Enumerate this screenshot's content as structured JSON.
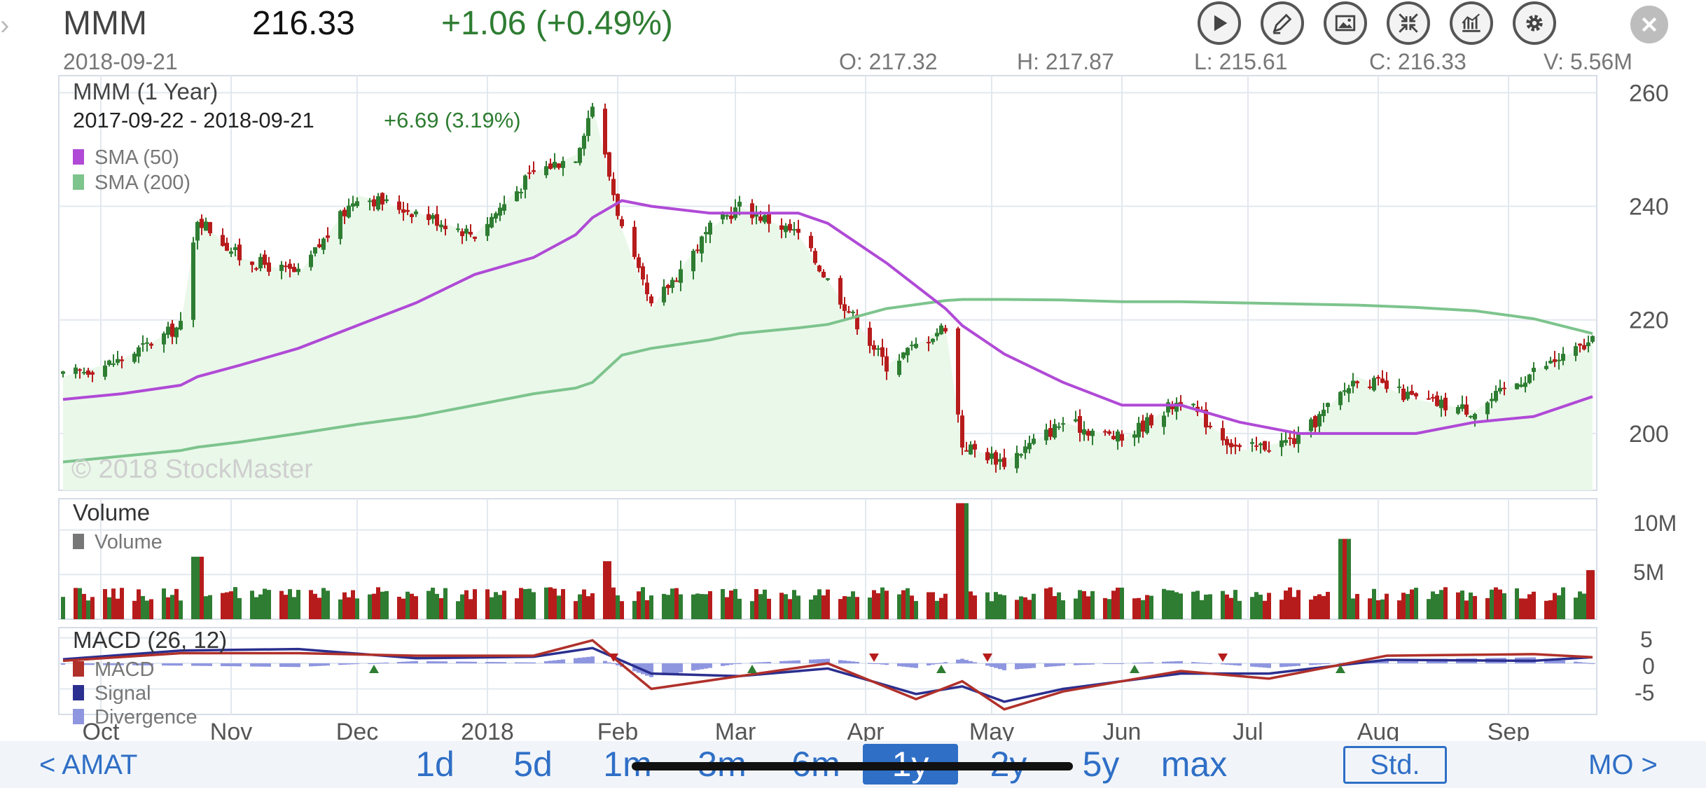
{
  "header": {
    "symbol": "MMM",
    "price": "216.33",
    "change": "+1.06 (+0.49%)",
    "date": "2018-09-21",
    "open": "O: 217.32",
    "high": "H: 217.87",
    "low": "L: 215.61",
    "close": "C: 216.33",
    "volume": "V: 5.56M"
  },
  "toolbar": {
    "icons": [
      "play-icon",
      "draw-pencil-icon",
      "picture-icon",
      "compress-arrows-icon",
      "chart-type-icon",
      "gear-icon",
      "close-icon"
    ]
  },
  "colors": {
    "up": "#2e7d32",
    "down": "#b71c1c",
    "sma50": "#b04ad6",
    "sma200": "#7dc48d",
    "macd": "#b0302a",
    "signal": "#2b2f8f",
    "divergence": "#8f96e0",
    "accent": "#2f6fc6"
  },
  "price_panel": {
    "title": "MMM (1 Year)",
    "range_text": "2017-09-22 - 2018-09-21",
    "range_change": "+6.69 (3.19%)",
    "legend": [
      {
        "label": "SMA (50)",
        "color": "#b04ad6"
      },
      {
        "label": "SMA (200)",
        "color": "#7dc48d"
      }
    ],
    "watermark": "© 2018 StockMaster",
    "y_ticks": [
      "260",
      "240",
      "220",
      "200"
    ]
  },
  "volume_panel": {
    "title": "Volume",
    "legend": "Volume",
    "y_ticks": [
      "10M",
      "5M"
    ]
  },
  "macd_panel": {
    "title": "MACD (26, 12)",
    "legend": [
      "MACD",
      "Signal",
      "Divergence"
    ],
    "y_ticks": [
      "5",
      "0",
      "-5"
    ]
  },
  "x_ticks": [
    "Oct",
    "Nov",
    "Dec",
    "2018",
    "Feb",
    "Mar",
    "Apr",
    "May",
    "Jun",
    "Jul",
    "Aug",
    "Sep"
  ],
  "bottom": {
    "prev": "< AMAT",
    "next": "MO >",
    "ranges": [
      "1d",
      "5d",
      "1m",
      "3m",
      "6m",
      "1y",
      "2y",
      "5y",
      "max"
    ],
    "active_range": "1y",
    "std": "Std."
  },
  "chart_data": [
    {
      "type": "line",
      "title": "MMM (1 Year)",
      "x": [
        "2017-09-22",
        "2017-10-06",
        "2017-10-20",
        "2017-10-24",
        "2017-11-03",
        "2017-11-17",
        "2017-12-01",
        "2017-12-15",
        "2017-12-29",
        "2018-01-12",
        "2018-01-22",
        "2018-01-26",
        "2018-02-02",
        "2018-02-09",
        "2018-02-23",
        "2018-03-02",
        "2018-03-16",
        "2018-03-23",
        "2018-04-06",
        "2018-04-20",
        "2018-04-24",
        "2018-05-04",
        "2018-05-18",
        "2018-06-01",
        "2018-06-15",
        "2018-06-29",
        "2018-07-13",
        "2018-07-27",
        "2018-08-10",
        "2018-08-24",
        "2018-09-07",
        "2018-09-21"
      ],
      "series": [
        {
          "name": "MMM",
          "values": [
            210,
            213,
            219,
            238,
            231,
            228,
            242,
            239,
            235,
            246,
            249,
            258,
            236,
            222,
            236,
            240,
            235,
            227,
            212,
            219,
            198,
            195,
            202,
            199,
            206,
            197,
            199,
            210,
            206,
            204,
            211,
            216
          ]
        },
        {
          "name": "SMA (50)",
          "values": [
            206,
            207,
            208.5,
            210,
            212,
            215,
            219,
            223,
            228,
            231,
            235,
            238,
            241,
            240,
            238.8,
            238.8,
            238.8,
            237,
            230,
            222,
            219,
            214,
            209,
            205,
            205,
            202,
            200,
            200,
            200,
            202,
            203,
            206.5
          ]
        },
        {
          "name": "SMA (200)",
          "values": [
            195,
            196,
            197,
            197.6,
            198.5,
            200,
            201.6,
            203,
            205,
            207,
            208,
            209,
            213.8,
            215,
            216.5,
            217.6,
            218.6,
            219.2,
            222,
            223.4,
            223.6,
            223.6,
            223.5,
            223.2,
            223.2,
            223,
            222.8,
            222.6,
            222.2,
            221.6,
            220.2,
            217.6
          ]
        }
      ],
      "ylim": [
        190,
        263
      ],
      "y_ticks": [
        260,
        240,
        220,
        200
      ],
      "grid": true
    },
    {
      "type": "bar",
      "title": "Volume",
      "x": [
        "2017-09-22",
        "2017-10-24",
        "2018-01-29",
        "2018-04-24",
        "2018-07-24",
        "2018-09-21"
      ],
      "values": [
        2.5,
        7.0,
        6.5,
        13.0,
        9.0,
        5.5
      ],
      "ylim": [
        0,
        13.5
      ],
      "y_ticks": [
        "10M",
        "5M"
      ],
      "unit": "M"
    },
    {
      "type": "line",
      "title": "MACD (26, 12)",
      "x": [
        "2017-09-22",
        "2017-10-20",
        "2017-11-17",
        "2017-12-15",
        "2018-01-12",
        "2018-01-26",
        "2018-02-09",
        "2018-03-02",
        "2018-03-23",
        "2018-04-13",
        "2018-04-24",
        "2018-05-04",
        "2018-05-18",
        "2018-06-15",
        "2018-07-06",
        "2018-08-03",
        "2018-09-07",
        "2018-09-21"
      ],
      "series": [
        {
          "name": "MACD",
          "values": [
            0.5,
            2.0,
            2.0,
            1.5,
            1.5,
            4.5,
            -5.0,
            -2.5,
            0,
            -7.0,
            -3.5,
            -9.0,
            -5.5,
            -1.5,
            -3.0,
            1.5,
            1.8,
            1.2
          ]
        },
        {
          "name": "Signal",
          "values": [
            0.8,
            2.5,
            2.8,
            1.0,
            1.3,
            3.0,
            -2.0,
            -2.5,
            -1.0,
            -6.0,
            -4.5,
            -7.5,
            -5.0,
            -2.0,
            -2.0,
            0.7,
            0.5,
            1.2
          ]
        }
      ],
      "ylim": [
        -10,
        7
      ],
      "y_ticks": [
        5,
        0,
        -5
      ]
    }
  ]
}
